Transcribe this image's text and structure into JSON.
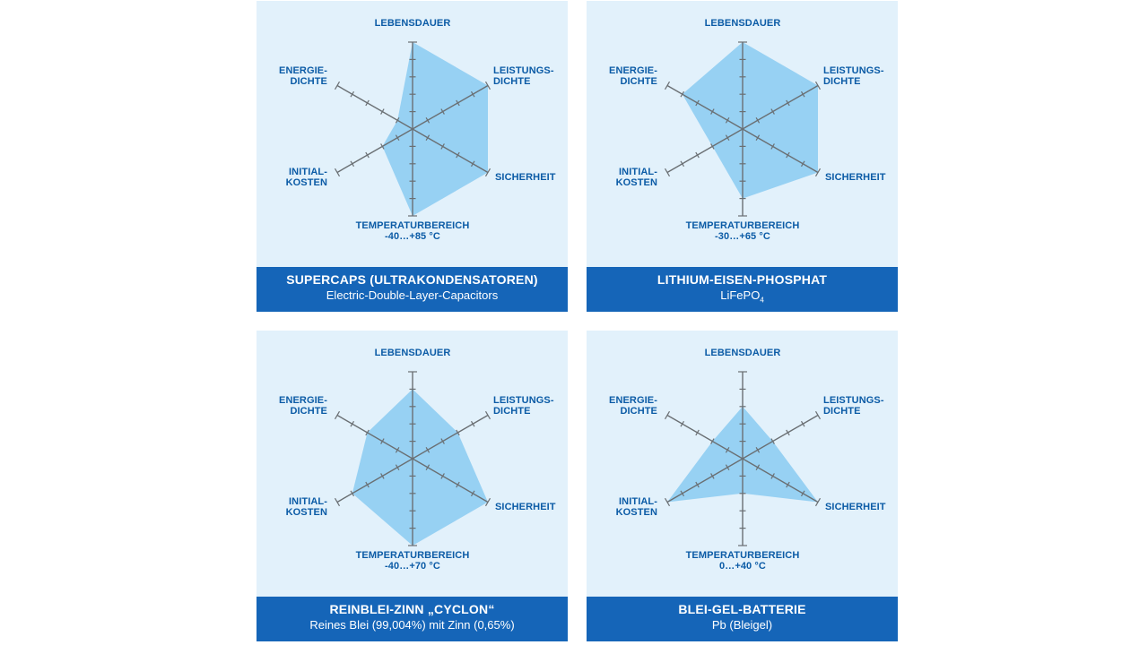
{
  "colors": {
    "panel_bg": "#e2f1fb",
    "fill": "#8fcdf2",
    "axis": "#6a6f73",
    "label": "#0b5ba6",
    "band": "#1565b8",
    "band_text": "#ffffff"
  },
  "chart_data": [
    {
      "type": "radar",
      "title": "SUPERCAPS (ULTRAKONDENSATOREN)",
      "subtitle": "Electric-Double-Layer-Capacitors",
      "axes": [
        "LEBENSDAUER",
        "LEISTUNGS-\nDICHTE",
        "SICHERHEIT",
        "TEMPERATURBEREICH\n-40…+85 °C",
        "INITIAL-\nKOSTEN",
        "ENERGIE-\nDICHTE"
      ],
      "scale": [
        0,
        5
      ],
      "values": [
        5,
        5,
        5,
        5,
        2,
        1
      ]
    },
    {
      "type": "radar",
      "title": "LITHIUM-EISEN-PHOSPHAT",
      "subtitle": "LiFePO",
      "subtitle_sub": "4",
      "axes": [
        "LEBENSDAUER",
        "LEISTUNGS-\nDICHTE",
        "SICHERHEIT",
        "TEMPERATURBEREICH\n-30…+65 °C",
        "INITIAL-\nKOSTEN",
        "ENERGIE-\nDICHTE"
      ],
      "scale": [
        0,
        5
      ],
      "values": [
        5,
        5,
        5,
        4,
        2,
        4
      ]
    },
    {
      "type": "radar",
      "title": "REINBLEI-ZINN „CYCLON“",
      "subtitle": "Reines Blei (99,004%) mit Zinn (0,65%)",
      "axes": [
        "LEBENSDAUER",
        "LEISTUNGS-\nDICHTE",
        "SICHERHEIT",
        "TEMPERATURBEREICH\n-40…+70 °C",
        "INITIAL-\nKOSTEN",
        "ENERGIE-\nDICHTE"
      ],
      "scale": [
        0,
        5
      ],
      "values": [
        4,
        3,
        5,
        5,
        4,
        3
      ]
    },
    {
      "type": "radar",
      "title": "BLEI-GEL-BATTERIE",
      "subtitle": "Pb (Bleigel)",
      "axes": [
        "LEBENSDAUER",
        "LEISTUNGS-\nDICHTE",
        "SICHERHEIT",
        "TEMPERATURBEREICH\n0…+40 °C",
        "INITIAL-\nKOSTEN",
        "ENERGIE-\nDICHTE"
      ],
      "scale": [
        0,
        5
      ],
      "values": [
        3,
        2,
        5,
        2,
        5,
        2
      ]
    }
  ]
}
